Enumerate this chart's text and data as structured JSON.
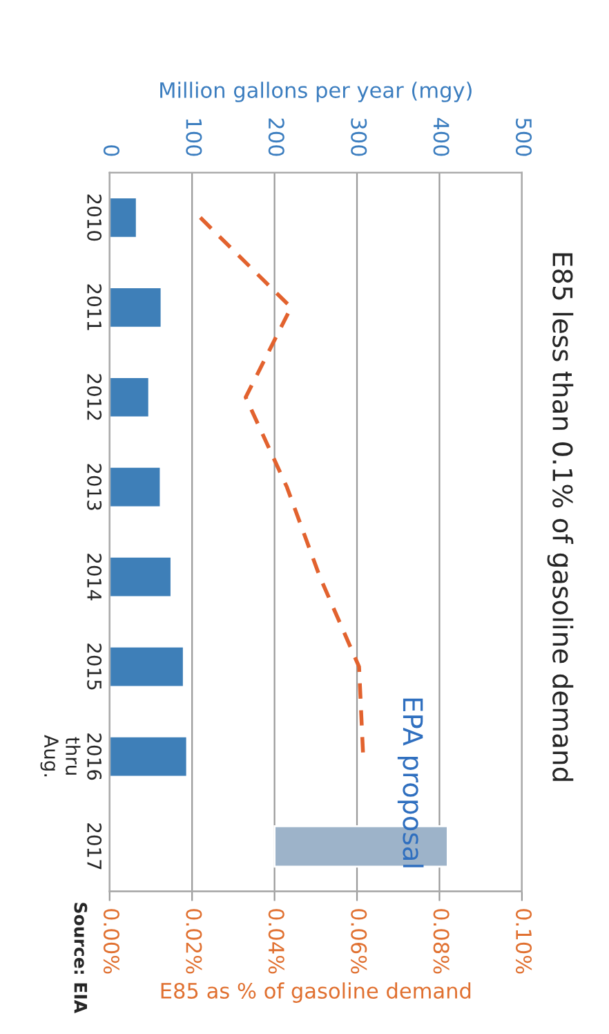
{
  "chart_data": {
    "type": "bar",
    "orientation": "horizontal",
    "title": "E85 less than 0.1% of gasoline demand",
    "xlabel": "Million gallons per year (mgy)",
    "x2label": "E85 as % of gasoline demand",
    "categories": [
      "2010",
      "2011",
      "2012",
      "2013",
      "2014",
      "2015",
      "2016\nthru\nAug.",
      "2017"
    ],
    "series": [
      {
        "colors": [
          "#3e7fb8",
          "#3e7fb8",
          "#3e7fb8",
          "#3e7fb8",
          "#3e7fb8",
          "#3e7fb8",
          "#3e7fb8",
          "#9db3c9"
        ],
        "base": [
          0,
          0,
          0,
          0,
          0,
          0,
          0,
          200
        ],
        "values": [
          33,
          63,
          48,
          62,
          75,
          90,
          94,
          210
        ]
      },
      {
        "type": "line",
        "axis": "x2",
        "color": "#e2622e",
        "line_style": "dashed",
        "values": [
          0.022,
          0.044,
          0.033,
          0.043,
          0.051,
          0.0605,
          0.0615,
          null
        ]
      }
    ],
    "xlim": [
      0,
      500
    ],
    "xticks": [
      0,
      100,
      200,
      300,
      400,
      500
    ],
    "x2lim": [
      0,
      0.1
    ],
    "x2ticks": [
      {
        "value": 0,
        "label": "0.00%"
      },
      {
        "value": 0.02,
        "label": "0.02%"
      },
      {
        "value": 0.04,
        "label": "0.04%"
      },
      {
        "value": 0.06,
        "label": "0.06%"
      },
      {
        "value": 0.08,
        "label": "0.08%"
      },
      {
        "value": 0.1,
        "label": "0.10%"
      }
    ],
    "grid": "x",
    "legend": false,
    "annotations": [
      "EPA proposal",
      "Source: EIA"
    ]
  }
}
